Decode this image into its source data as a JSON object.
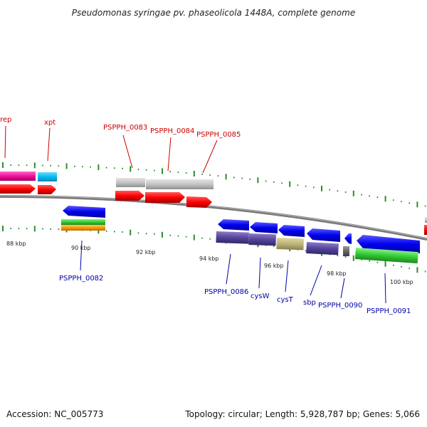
{
  "title": "Pseudomonas syringae pv. phaseolicola 1448A, complete genome",
  "footer": {
    "accession": "Accession: NC_005773",
    "summary": "Topology: circular; Length: 5,928,787 bp; Genes: 5,066"
  },
  "colors": {
    "forward_label": "#cc0000",
    "reverse_label": "#0000aa",
    "backbone": "#888888",
    "tick": "#2e8b2e"
  },
  "scale_labels": [
    "88 kbp",
    "90 kbp",
    "92 kbp",
    "94 kbp",
    "96 kbp",
    "98 kbp",
    "100 kbp"
  ],
  "forward_labels": [
    "rep",
    "xpt",
    "PSPPH_0083",
    "PSPPH_0084",
    "PSPPH_0085"
  ],
  "reverse_labels": [
    "PSPPH_0082",
    "PSPPH_0086",
    "cysW",
    "cysT",
    "sbp",
    "PSPPH_0090",
    "PSPPH_0091"
  ]
}
